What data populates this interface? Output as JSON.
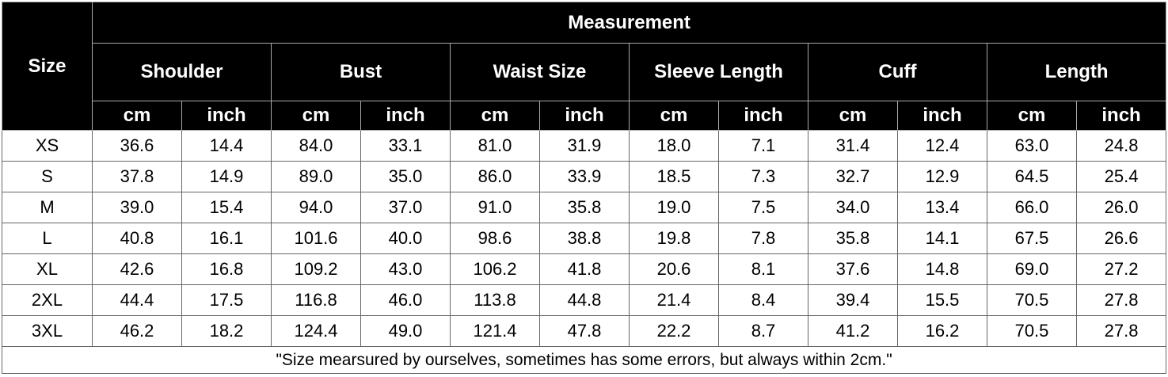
{
  "header": {
    "size": "Size",
    "title": "Measurement"
  },
  "groups": [
    {
      "name": "Shoulder",
      "units": [
        "cm",
        "inch"
      ]
    },
    {
      "name": "Bust",
      "units": [
        "cm",
        "inch"
      ]
    },
    {
      "name": "Waist Size",
      "units": [
        "cm",
        "inch"
      ]
    },
    {
      "name": "Sleeve Length",
      "units": [
        "cm",
        "inch"
      ]
    },
    {
      "name": "Cuff",
      "units": [
        "cm",
        "inch"
      ]
    },
    {
      "name": "Length",
      "units": [
        "cm",
        "inch"
      ]
    }
  ],
  "rows": [
    {
      "size": "XS",
      "values": [
        "36.6",
        "14.4",
        "84.0",
        "33.1",
        "81.0",
        "31.9",
        "18.0",
        "7.1",
        "31.4",
        "12.4",
        "63.0",
        "24.8"
      ]
    },
    {
      "size": "S",
      "values": [
        "37.8",
        "14.9",
        "89.0",
        "35.0",
        "86.0",
        "33.9",
        "18.5",
        "7.3",
        "32.7",
        "12.9",
        "64.5",
        "25.4"
      ]
    },
    {
      "size": "M",
      "values": [
        "39.0",
        "15.4",
        "94.0",
        "37.0",
        "91.0",
        "35.8",
        "19.0",
        "7.5",
        "34.0",
        "13.4",
        "66.0",
        "26.0"
      ]
    },
    {
      "size": "L",
      "values": [
        "40.8",
        "16.1",
        "101.6",
        "40.0",
        "98.6",
        "38.8",
        "19.8",
        "7.8",
        "35.8",
        "14.1",
        "67.5",
        "26.6"
      ]
    },
    {
      "size": "XL",
      "values": [
        "42.6",
        "16.8",
        "109.2",
        "43.0",
        "106.2",
        "41.8",
        "20.6",
        "8.1",
        "37.6",
        "14.8",
        "69.0",
        "27.2"
      ]
    },
    {
      "size": "2XL",
      "values": [
        "44.4",
        "17.5",
        "116.8",
        "46.0",
        "113.8",
        "44.8",
        "21.4",
        "8.4",
        "39.4",
        "15.5",
        "70.5",
        "27.8"
      ]
    },
    {
      "size": "3XL",
      "values": [
        "46.2",
        "18.2",
        "124.4",
        "49.0",
        "121.4",
        "47.8",
        "22.2",
        "8.7",
        "41.2",
        "16.2",
        "70.5",
        "27.8"
      ]
    }
  ],
  "footer": "\"Size mearsured by ourselves, sometimes has some errors, but always within 2cm.\""
}
